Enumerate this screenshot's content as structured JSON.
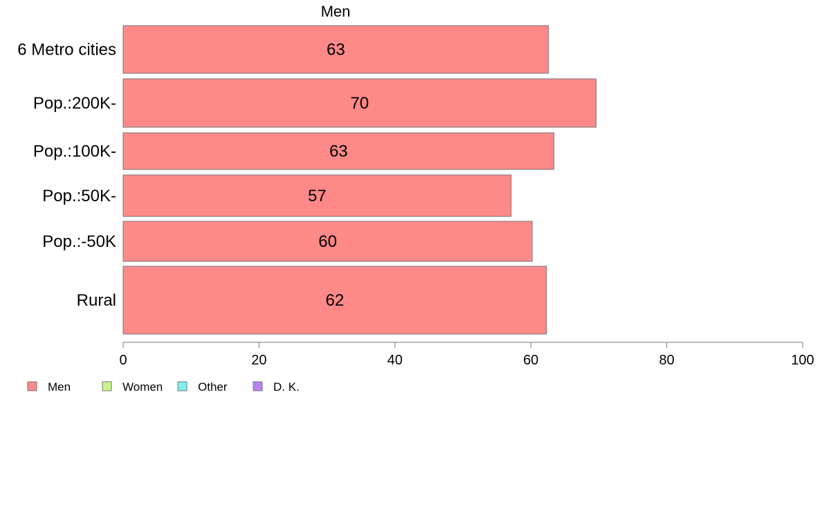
{
  "chart_data": {
    "type": "bar",
    "orientation": "horizontal",
    "title": "Men",
    "xlabel": "",
    "ylabel": "",
    "xlim": [
      0,
      100
    ],
    "x_ticks": [
      "0",
      "20",
      "40",
      "60",
      "80",
      "100"
    ],
    "grid": false,
    "categories": [
      "6 Metro cities",
      "Pop.:200K-",
      "Pop.:100K-",
      "Pop.:50K-",
      "Pop.:-50K",
      "Rural"
    ],
    "values": [
      63,
      70,
      63,
      57,
      60,
      62
    ],
    "value_labels": [
      "63",
      "70",
      "63",
      "57",
      "60",
      "62"
    ],
    "exact_values": [
      62.6,
      69.6,
      63.4,
      57.1,
      60.2,
      62.3
    ],
    "series_color": "#ff8888",
    "legend": {
      "placement": "bottom-left",
      "entries": [
        {
          "label": "Men",
          "color": "#ff8888"
        },
        {
          "label": "Women",
          "color": "#c8f58a"
        },
        {
          "label": "Other",
          "color": "#7ff0ef"
        },
        {
          "label": "D. K.",
          "color": "#b983f4"
        }
      ]
    }
  }
}
